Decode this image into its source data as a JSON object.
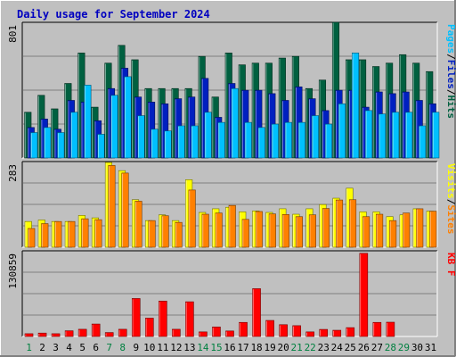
{
  "title": "Daily usage for September 2024",
  "colors": {
    "page_bg": "#c0c0c0",
    "plot_bg": "#c0c0c0",
    "title": "#0000c0",
    "hits": "#006040",
    "files": "#0020c0",
    "pages": "#00c0ff",
    "sites": "#ff8000",
    "visits": "#ffff00",
    "kbytes": "#ff0000",
    "label_dark": "#000000",
    "weekend_label": "#008040"
  },
  "chart_data": [
    {
      "type": "bar",
      "panel": "hits-files-pages",
      "ymax_label": "801",
      "ylim": [
        0,
        801
      ],
      "legend": [
        {
          "text": "Hits",
          "color_key": "hits"
        },
        {
          "text": "Files",
          "color_key": "files"
        },
        {
          "text": "Pages",
          "color_key": "pages"
        }
      ],
      "legend_separator": "/",
      "series": [
        {
          "name": "Hits",
          "color_key": "hits",
          "values": [
            270,
            370,
            290,
            440,
            620,
            300,
            560,
            665,
            580,
            410,
            410,
            410,
            410,
            600,
            360,
            620,
            550,
            560,
            560,
            590,
            600,
            410,
            460,
            801,
            580,
            580,
            540,
            560,
            610,
            560,
            510
          ]
        },
        {
          "name": "Files",
          "color_key": "files",
          "values": [
            180,
            230,
            170,
            340,
            330,
            220,
            410,
            530,
            360,
            330,
            320,
            350,
            360,
            470,
            240,
            440,
            400,
            400,
            380,
            340,
            420,
            350,
            280,
            400,
            400,
            300,
            390,
            380,
            390,
            340,
            320
          ]
        },
        {
          "name": "Pages",
          "color_key": "pages",
          "values": [
            150,
            180,
            150,
            270,
            430,
            140,
            370,
            480,
            250,
            170,
            160,
            190,
            190,
            270,
            210,
            410,
            210,
            180,
            200,
            210,
            210,
            250,
            200,
            320,
            620,
            280,
            260,
            270,
            270,
            190,
            270
          ]
        }
      ]
    },
    {
      "type": "bar",
      "panel": "sites-visits",
      "ymax_label": "283",
      "ylim": [
        0,
        283
      ],
      "legend": [
        {
          "text": "Sites",
          "color_key": "sites"
        },
        {
          "text": "Visits",
          "color_key": "visits"
        }
      ],
      "legend_separator": "/",
      "series": [
        {
          "name": "Visits",
          "color_key": "visits",
          "values": [
            85,
            90,
            85,
            85,
            105,
            97,
            280,
            253,
            157,
            88,
            107,
            88,
            223,
            115,
            127,
            132,
            117,
            120,
            115,
            127,
            109,
            127,
            141,
            162,
            195,
            117,
            117,
            101,
            107,
            127,
            119
          ]
        },
        {
          "name": "Sites",
          "color_key": "sites",
          "values": [
            62,
            78,
            85,
            85,
            94,
            91,
            270,
            245,
            152,
            88,
            104,
            82,
            189,
            109,
            113,
            138,
            92,
            118,
            110,
            108,
            101,
            107,
            128,
            156,
            157,
            101,
            109,
            88,
            113,
            127,
            119
          ]
        }
      ]
    },
    {
      "type": "bar",
      "panel": "kbytes",
      "ymax_label": "130859",
      "ylim": [
        0,
        130859
      ],
      "legend": [
        {
          "text": "KB F",
          "color_key": "kbytes"
        }
      ],
      "legend_separator": "",
      "series": [
        {
          "name": "KB F",
          "color_key": "kbytes",
          "values": [
            4200,
            5200,
            4200,
            8700,
            11000,
            19000,
            6000,
            11000,
            58000,
            28000,
            54000,
            11000,
            53000,
            7000,
            14500,
            8400,
            21500,
            73000,
            24500,
            18000,
            16500,
            7000,
            10800,
            9500,
            13500,
            127000,
            21500,
            21800,
            0,
            0,
            0
          ]
        }
      ]
    }
  ],
  "days": {
    "labels": [
      "1",
      "2",
      "3",
      "4",
      "5",
      "6",
      "7",
      "8",
      "9",
      "10",
      "11",
      "12",
      "13",
      "14",
      "15",
      "16",
      "17",
      "18",
      "19",
      "20",
      "21",
      "22",
      "23",
      "24",
      "25",
      "26",
      "27",
      "28",
      "29",
      "30",
      "31"
    ],
    "weekend_indices": [
      0,
      6,
      7,
      13,
      14,
      20,
      21,
      27,
      28
    ]
  }
}
